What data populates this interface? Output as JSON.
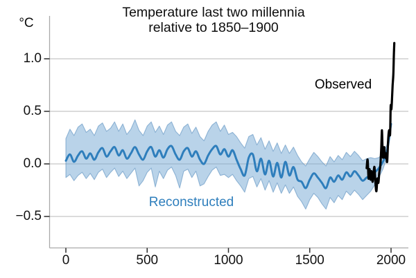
{
  "chart_data": {
    "type": "line",
    "title": "Temperature last two millennia relative to 1850–1900",
    "title_line1": "Temperature last two millennia",
    "title_line2": "relative to 1850–1900",
    "y_unit_label": "°C",
    "observed_label": "Observed",
    "reconstructed_label": "Reconstructed",
    "grid": "horizontal gridlines on, vertical off",
    "legend_position": "inline text annotations",
    "x_axis": {
      "ticks": [
        0,
        500,
        1000,
        1500,
        2000
      ],
      "labels": [
        "0",
        "500",
        "1000",
        "1500",
        "2000"
      ],
      "range": [
        -100,
        2100
      ]
    },
    "y_axis": {
      "ticks": [
        1.0,
        0.5,
        0.0,
        -0.5
      ],
      "labels": [
        "1.0",
        "0.5",
        "0.0",
        "−0.5"
      ],
      "range": [
        -0.8,
        1.3
      ]
    },
    "colors": {
      "observed": "#000000",
      "reconstructed": "#2e7ebc",
      "band_fill": "#73a7d3",
      "band_edge": "#4e87b9",
      "gridline": "#c5c5c5",
      "axis": "#a9a9a9",
      "tick": "#2b2b2b"
    },
    "series": [
      {
        "name": "Reconstructed",
        "color": "#2e7ebc",
        "years": [
          0,
          25,
          50,
          75,
          100,
          125,
          150,
          175,
          200,
          225,
          250,
          275,
          300,
          325,
          350,
          375,
          400,
          425,
          450,
          475,
          500,
          525,
          550,
          575,
          600,
          625,
          650,
          675,
          700,
          725,
          750,
          775,
          800,
          825,
          850,
          875,
          900,
          925,
          950,
          975,
          1000,
          1025,
          1050,
          1075,
          1100,
          1125,
          1150,
          1175,
          1200,
          1225,
          1250,
          1275,
          1300,
          1325,
          1350,
          1375,
          1400,
          1425,
          1450,
          1475,
          1500,
          1525,
          1550,
          1575,
          1600,
          1625,
          1650,
          1675,
          1700,
          1725,
          1750,
          1775,
          1800,
          1825,
          1850,
          1875,
          1900,
          1925,
          1950,
          1975,
          2000
        ],
        "median": [
          0.03,
          0.09,
          0.02,
          0.08,
          0.12,
          0.05,
          0.1,
          0.04,
          0.11,
          0.15,
          0.07,
          0.12,
          0.16,
          0.08,
          0.13,
          0.05,
          0.1,
          0.16,
          0.09,
          0.04,
          0.12,
          0.16,
          0.07,
          0.13,
          0.06,
          0.14,
          0.17,
          0.09,
          0.04,
          0.12,
          0.15,
          0.07,
          0.12,
          0.04,
          0.0,
          0.08,
          0.14,
          0.17,
          0.09,
          0.14,
          0.07,
          0.13,
          0.04,
          -0.05,
          -0.11,
          0.06,
          0.09,
          -0.07,
          0.05,
          -0.1,
          0.03,
          -0.12,
          0.01,
          -0.13,
          0.02,
          -0.11,
          -0.03,
          -0.15,
          -0.17,
          -0.23,
          -0.15,
          -0.09,
          -0.13,
          -0.18,
          -0.23,
          -0.13,
          -0.17,
          -0.11,
          -0.15,
          -0.08,
          -0.12,
          -0.07,
          -0.11,
          -0.16,
          -0.13,
          -0.11,
          -0.08,
          -0.04,
          0.02,
          0.12,
          0.38
        ],
        "upper": [
          0.24,
          0.33,
          0.27,
          0.35,
          0.38,
          0.3,
          0.33,
          0.27,
          0.36,
          0.39,
          0.31,
          0.34,
          0.4,
          0.31,
          0.38,
          0.28,
          0.33,
          0.42,
          0.32,
          0.27,
          0.36,
          0.4,
          0.3,
          0.36,
          0.28,
          0.37,
          0.4,
          0.31,
          0.27,
          0.35,
          0.38,
          0.29,
          0.35,
          0.26,
          0.22,
          0.31,
          0.37,
          0.4,
          0.31,
          0.37,
          0.28,
          0.3,
          0.26,
          0.2,
          0.15,
          0.26,
          0.28,
          0.18,
          0.25,
          0.14,
          0.22,
          0.12,
          0.2,
          0.1,
          0.18,
          0.1,
          0.16,
          0.08,
          0.02,
          -0.02,
          0.05,
          0.11,
          0.07,
          0.02,
          -0.02,
          0.07,
          0.02,
          0.08,
          0.04,
          0.11,
          0.07,
          0.12,
          0.08,
          0.03,
          0.05,
          0.06,
          0.05,
          0.06,
          0.1,
          0.18,
          0.42
        ],
        "lower": [
          -0.13,
          -0.1,
          -0.16,
          -0.11,
          -0.08,
          -0.14,
          -0.09,
          -0.15,
          -0.08,
          -0.05,
          -0.13,
          -0.08,
          -0.04,
          -0.12,
          -0.07,
          -0.14,
          -0.09,
          -0.04,
          -0.21,
          -0.16,
          -0.08,
          -0.04,
          -0.22,
          -0.07,
          -0.14,
          -0.06,
          -0.03,
          -0.11,
          -0.23,
          -0.07,
          -0.05,
          -0.13,
          -0.07,
          -0.21,
          -0.19,
          -0.12,
          -0.06,
          -0.03,
          -0.11,
          -0.1,
          -0.13,
          -0.1,
          -0.16,
          -0.21,
          -0.27,
          -0.14,
          -0.12,
          -0.22,
          -0.14,
          -0.25,
          -0.16,
          -0.27,
          -0.18,
          -0.28,
          -0.2,
          -0.28,
          -0.22,
          -0.31,
          -0.36,
          -0.43,
          -0.34,
          -0.28,
          -0.32,
          -0.38,
          -0.43,
          -0.32,
          -0.37,
          -0.3,
          -0.34,
          -0.26,
          -0.3,
          -0.25,
          -0.29,
          -0.34,
          -0.3,
          -0.26,
          -0.2,
          -0.13,
          -0.05,
          0.06,
          0.33
        ]
      },
      {
        "name": "Observed",
        "color": "#000000",
        "years": [
          1850,
          1856,
          1862,
          1868,
          1874,
          1880,
          1886,
          1892,
          1898,
          1904,
          1910,
          1916,
          1922,
          1928,
          1934,
          1940,
          1944,
          1948,
          1952,
          1958,
          1964,
          1970,
          1976,
          1982,
          1988,
          1994,
          1998,
          2002,
          2006,
          2010,
          2014,
          2017,
          2020
        ],
        "values": [
          -0.04,
          0.04,
          -0.14,
          -0.05,
          -0.15,
          -0.07,
          -0.17,
          -0.1,
          -0.03,
          -0.18,
          -0.26,
          -0.14,
          -0.18,
          -0.08,
          -0.02,
          0.15,
          0.32,
          0.12,
          0.06,
          0.16,
          0.06,
          0.1,
          0.02,
          0.22,
          0.32,
          0.28,
          0.55,
          0.52,
          0.62,
          0.75,
          0.85,
          1.02,
          1.15
        ]
      }
    ]
  }
}
